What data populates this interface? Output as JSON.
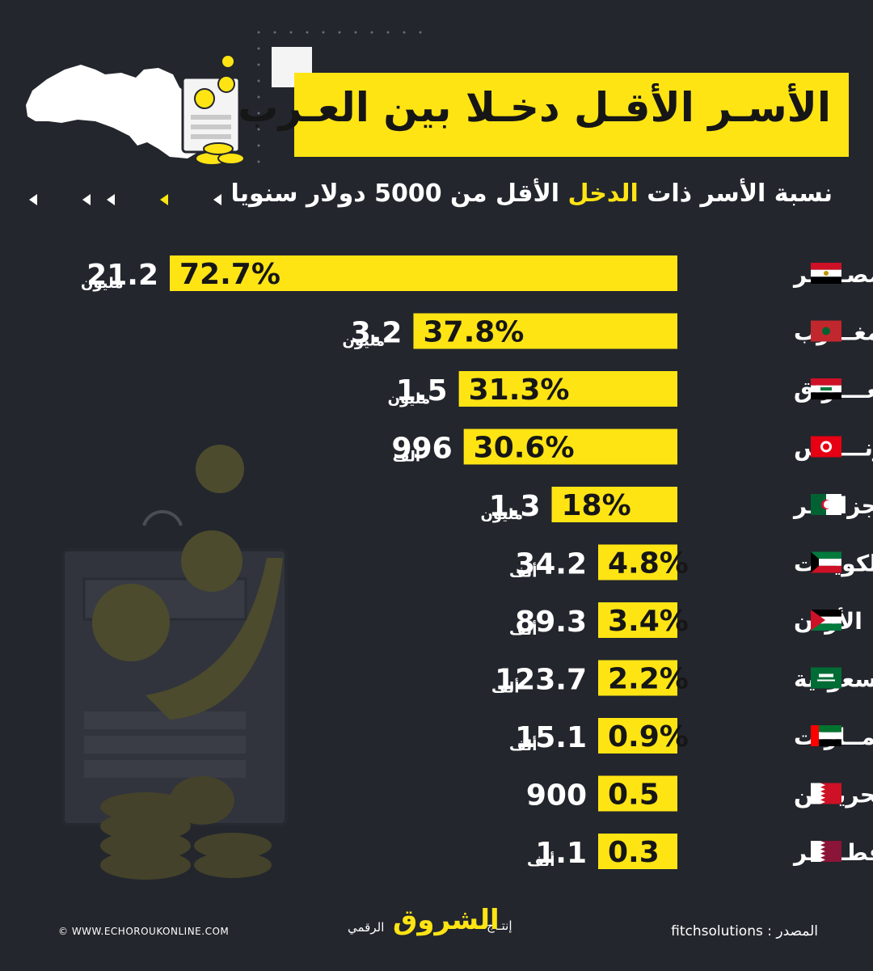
{
  "title": "الأسـر الأقـل دخـلا بين العـرب",
  "subtitle": {
    "part1": "نسبة الأسر ذات ",
    "highlight": "الدخل",
    "part2": " الأقل من 5000 دولار سنويا"
  },
  "colors": {
    "accent": "#ffe414",
    "background": "#23262d",
    "bar_text": "#161616"
  },
  "chart_data": {
    "type": "bar",
    "orientation": "horizontal",
    "categories": [
      "مصـــــر",
      "المغـــرب",
      "العــــراق",
      "تونـــــس",
      "الجزائـــر",
      "الكويــت",
      "الأردن",
      "السعودية",
      "الإمــارات",
      "البحريـــن",
      "قطـــــر"
    ],
    "values": [
      72.7,
      37.8,
      31.3,
      30.6,
      18,
      4.8,
      3.4,
      2.2,
      0.9,
      0.5,
      0.3
    ],
    "bar_labels": [
      "72.7%",
      "37.8%",
      "31.3%",
      "30.6%",
      "18%",
      "4.8%",
      "3.4%",
      "2.2%",
      "0.9%",
      "0.5",
      "0.3"
    ],
    "counts": [
      "21.2",
      "3.2",
      "1.5",
      "996",
      "1.3",
      "34.2",
      "89.3",
      "123.7",
      "15.1",
      "900",
      "1.1"
    ],
    "count_units": [
      "مليون",
      "مليون",
      "مليون",
      "ألف",
      "مليون",
      "ألف",
      "ألف",
      "ألف",
      "ألف",
      "",
      "ألف"
    ],
    "flags": [
      "egypt-flag",
      "morocco-flag",
      "iraq-flag",
      "tunisia-flag",
      "algeria-flag",
      "kuwait-flag",
      "jordan-flag",
      "saudi-flag",
      "uae-flag",
      "bahrain-flag",
      "qatar-flag"
    ]
  },
  "footer": {
    "source_label": "المصدر :",
    "source_value": "fitchsolutions",
    "production_prefix": "إنتـاج",
    "brand": "الشروق",
    "production_suffix": "الرقمي",
    "website": "© WWW.ECHOROUKONLINE.COM"
  }
}
